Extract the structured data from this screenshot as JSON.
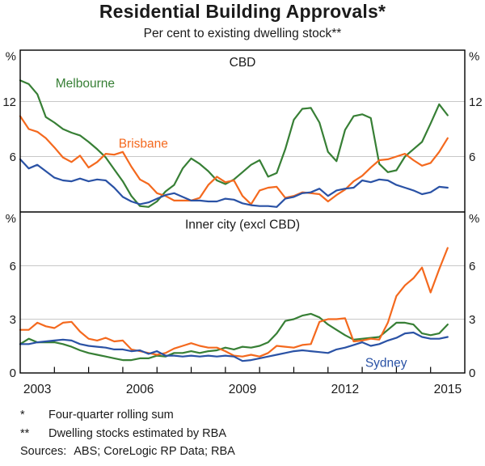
{
  "header": {
    "title": "Residential Building Approvals*",
    "subtitle": "Per cent to existing dwelling stock**"
  },
  "chart_data": {
    "type": "line",
    "unit": "%",
    "frequency": "quarterly",
    "x_start": 2003.0,
    "x_step": 0.25,
    "x_axis": {
      "range": [
        2003,
        2016
      ],
      "tick_years": [
        2004,
        2005,
        2006,
        2007,
        2008,
        2009,
        2010,
        2011,
        2012,
        2013,
        2014,
        2015
      ],
      "label_years": [
        "2003",
        "2006",
        "2009",
        "2012",
        "2015"
      ]
    },
    "grid_color": "#c8c8c8",
    "frame_color": "#000000",
    "panels": [
      {
        "title": "CBD",
        "ylim": [
          0,
          17.6
        ],
        "yticks": [
          6,
          12
        ],
        "series": [
          {
            "name": "Melbourne",
            "color": "#377f35",
            "label_at": [
              2004.9,
              14.0
            ],
            "values": [
              14.3,
              13.9,
              12.8,
              10.3,
              9.7,
              9.0,
              8.6,
              8.3,
              7.6,
              6.8,
              5.9,
              4.6,
              3.3,
              1.7,
              0.6,
              0.5,
              1.1,
              2.2,
              2.9,
              4.7,
              5.8,
              5.2,
              4.4,
              3.4,
              3.0,
              3.5,
              4.3,
              5.1,
              5.6,
              3.8,
              4.2,
              6.8,
              10.0,
              11.2,
              11.3,
              9.7,
              6.5,
              5.5,
              8.9,
              10.4,
              10.6,
              10.2,
              5.2,
              4.3,
              4.5,
              6.0,
              6.8,
              7.6,
              9.6,
              11.7,
              10.5
            ]
          },
          {
            "name": "Brisbane",
            "color": "#f4691e",
            "label_at": [
              2006.6,
              7.4
            ],
            "values": [
              10.4,
              9.0,
              8.7,
              8.0,
              7.0,
              5.9,
              5.4,
              6.1,
              4.8,
              5.4,
              6.3,
              6.2,
              6.5,
              4.9,
              3.5,
              3.0,
              2.0,
              1.7,
              1.2,
              1.2,
              1.2,
              1.5,
              2.9,
              3.8,
              3.2,
              3.4,
              1.7,
              0.8,
              2.3,
              2.6,
              2.7,
              1.5,
              1.7,
              2.1,
              2.0,
              1.9,
              1.1,
              1.8,
              2.4,
              3.3,
              3.9,
              4.8,
              5.6,
              5.7,
              6.0,
              6.3,
              5.6,
              5.0,
              5.3,
              6.5,
              8.0
            ]
          },
          {
            "name": "Sydney",
            "color": "#2a52a5",
            "label_at": null,
            "values": [
              5.7,
              4.7,
              5.1,
              4.4,
              3.7,
              3.4,
              3.3,
              3.6,
              3.3,
              3.5,
              3.4,
              2.6,
              1.6,
              1.1,
              0.8,
              1.0,
              1.4,
              1.8,
              2.0,
              1.6,
              1.2,
              1.2,
              1.1,
              1.1,
              1.4,
              1.3,
              0.9,
              0.7,
              0.6,
              0.6,
              0.5,
              1.4,
              1.6,
              2.0,
              2.1,
              2.5,
              1.7,
              2.3,
              2.5,
              2.6,
              3.4,
              3.2,
              3.5,
              3.4,
              2.9,
              2.6,
              2.3,
              1.9,
              2.1,
              2.7,
              2.6
            ]
          }
        ]
      },
      {
        "title": "Inner city (excl CBD)",
        "ylim": [
          0,
          9
        ],
        "yticks": [
          0,
          3,
          6
        ],
        "series": [
          {
            "name": "Melbourne",
            "color": "#377f35",
            "label_at": null,
            "values": [
              1.6,
              1.9,
              1.7,
              1.7,
              1.7,
              1.6,
              1.45,
              1.25,
              1.1,
              1.0,
              0.9,
              0.8,
              0.7,
              0.7,
              0.8,
              0.8,
              0.95,
              0.9,
              1.1,
              1.1,
              1.2,
              1.1,
              1.2,
              1.25,
              1.4,
              1.3,
              1.45,
              1.4,
              1.5,
              1.7,
              2.2,
              2.9,
              3.0,
              3.2,
              3.3,
              3.1,
              2.7,
              2.4,
              2.1,
              1.85,
              1.9,
              1.95,
              2.0,
              2.4,
              2.8,
              2.8,
              2.7,
              2.2,
              2.1,
              2.2,
              2.7
            ]
          },
          {
            "name": "Brisbane",
            "color": "#f4691e",
            "label_at": null,
            "values": [
              2.4,
              2.4,
              2.8,
              2.6,
              2.5,
              2.8,
              2.85,
              2.3,
              1.9,
              1.8,
              1.95,
              1.75,
              1.8,
              1.3,
              1.2,
              1.1,
              1.0,
              1.1,
              1.35,
              1.5,
              1.65,
              1.5,
              1.4,
              1.4,
              1.2,
              0.95,
              0.9,
              1.0,
              0.9,
              1.1,
              1.5,
              1.45,
              1.4,
              1.55,
              1.6,
              2.85,
              3.0,
              3.0,
              3.05,
              1.75,
              1.8,
              1.9,
              1.85,
              2.8,
              4.3,
              4.9,
              5.3,
              5.9,
              4.5,
              5.8,
              7.0
            ]
          },
          {
            "name": "Sydney",
            "color": "#2a52a5",
            "label_at": [
              2013.7,
              0.55
            ],
            "values": [
              1.6,
              1.6,
              1.7,
              1.75,
              1.8,
              1.85,
              1.8,
              1.6,
              1.5,
              1.45,
              1.4,
              1.3,
              1.3,
              1.2,
              1.25,
              1.05,
              1.2,
              0.95,
              0.95,
              0.9,
              0.95,
              0.9,
              0.95,
              0.9,
              0.95,
              0.9,
              0.65,
              0.7,
              0.8,
              0.9,
              1.0,
              1.1,
              1.2,
              1.25,
              1.2,
              1.15,
              1.1,
              1.3,
              1.4,
              1.55,
              1.7,
              1.5,
              1.6,
              1.8,
              1.95,
              2.2,
              2.25,
              2.0,
              1.9,
              1.9,
              2.0
            ]
          }
        ]
      }
    ]
  },
  "footnotes": [
    {
      "marker": "*",
      "text": "Four-quarter rolling sum"
    },
    {
      "marker": "**",
      "text": "Dwelling stocks estimated by RBA"
    }
  ],
  "sources": {
    "label": "Sources:",
    "text": "ABS; CoreLogic RP Data; RBA"
  }
}
